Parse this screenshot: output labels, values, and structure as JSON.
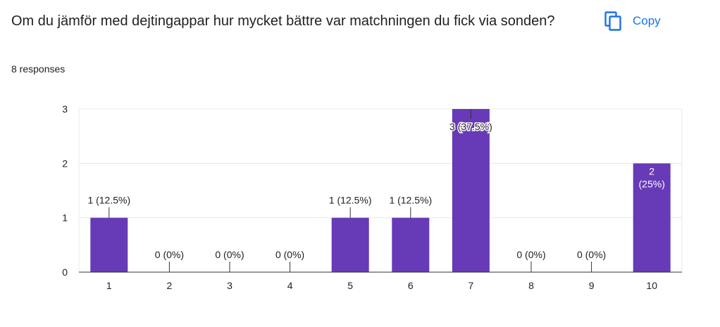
{
  "question": {
    "title": "Om du jämför med dejtingappar hur mycket bättre var matchningen du fick via sonden?"
  },
  "responses": {
    "label": "8 responses"
  },
  "copy": {
    "label": "Copy",
    "icon": "copy-icon"
  },
  "colors": {
    "bar": "#673ab7",
    "accent": "#1a73e8",
    "grid": "#e8e8e8",
    "axis": "#333333"
  },
  "chart_data": {
    "type": "bar",
    "categories": [
      "1",
      "2",
      "3",
      "4",
      "5",
      "6",
      "7",
      "8",
      "9",
      "10"
    ],
    "values": [
      1,
      0,
      0,
      0,
      1,
      1,
      3,
      0,
      0,
      2
    ],
    "labels": [
      "1 (12.5%)",
      "0 (0%)",
      "0 (0%)",
      "0 (0%)",
      "1 (12.5%)",
      "1 (12.5%)",
      "3 (37.5%)",
      "0 (0%)",
      "0 (0%)",
      "2 (25%)"
    ],
    "yticks": [
      0,
      1,
      2,
      3
    ],
    "ylim": [
      0,
      3
    ],
    "grid": true,
    "legend": "none"
  }
}
